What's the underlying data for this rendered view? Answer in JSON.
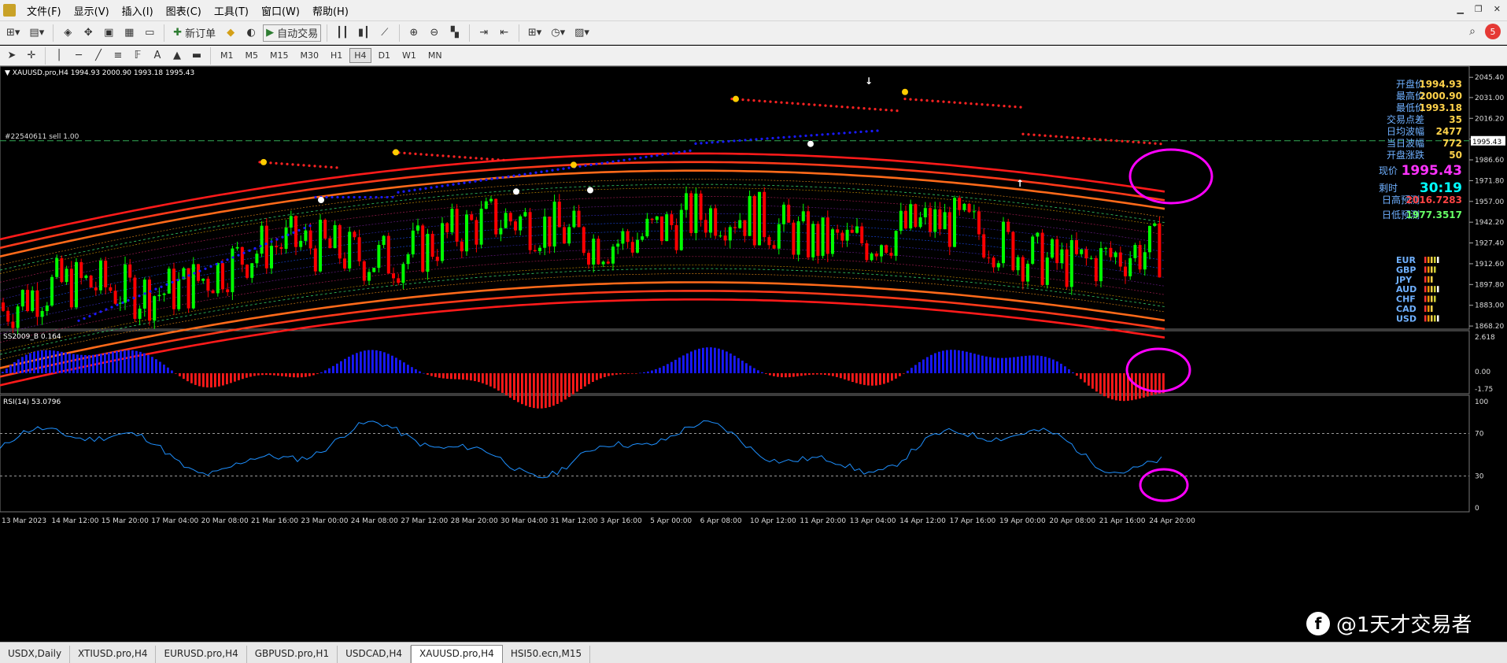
{
  "menubar": {
    "items": [
      "文件(F)",
      "显示(V)",
      "插入(I)",
      "图表(C)",
      "工具(T)",
      "窗口(W)",
      "帮助(H)"
    ]
  },
  "toolbar": {
    "new_order_label": "新订单",
    "auto_trade_label": "自动交易",
    "notification_count": "5"
  },
  "timeframes": [
    "M1",
    "M5",
    "M15",
    "M30",
    "H1",
    "H4",
    "D1",
    "W1",
    "MN"
  ],
  "active_timeframe": "H4",
  "main_chart": {
    "header": "XAUUSD.pro,H4  1994.93 2000.90 1993.18 1995.43",
    "order_line_label": "#22540611 sell 1.00",
    "current_price_tag": "1995.43",
    "price_axis": [
      "2045.40",
      "2031.00",
      "2016.20",
      "2001.40",
      "1986.60",
      "1971.80",
      "1957.00",
      "1942.20",
      "1927.40",
      "1912.60",
      "1897.80",
      "1883.00",
      "1868.20"
    ],
    "info_panel": [
      {
        "label": "开盘价",
        "value": "1994.93",
        "color": "#ffd24a"
      },
      {
        "label": "最高价",
        "value": "2000.90",
        "color": "#ffd24a"
      },
      {
        "label": "最低价",
        "value": "1993.18",
        "color": "#ffd24a"
      },
      {
        "label": "交易点差",
        "value": "35",
        "color": "#ffd24a"
      },
      {
        "label": "日均波幅",
        "value": "2477",
        "color": "#ffd24a"
      },
      {
        "label": "当日波幅",
        "value": "772",
        "color": "#ffd24a"
      },
      {
        "label": "开盘涨跌",
        "value": "50",
        "color": "#ffd24a"
      }
    ],
    "current_price": {
      "label": "现价",
      "value": "1995.43"
    },
    "remaining": {
      "label": "剩时",
      "value": "30:19"
    },
    "day_high_forecast": {
      "label": "日高预测",
      "value": "2016.7283"
    },
    "day_low_forecast": {
      "label": "日低预测",
      "value": "1977.3517"
    },
    "currencies": [
      "EUR",
      "GBP",
      "JPY",
      "AUD",
      "CHF",
      "CAD",
      "USD"
    ]
  },
  "indicator1": {
    "header": "SS2009_B 0.164",
    "axis": [
      "2.618",
      "0.00",
      "-1.75"
    ]
  },
  "indicator2": {
    "header": "RSI(14) 53.0796",
    "axis": [
      "100",
      "70",
      "30",
      "0"
    ]
  },
  "time_axis": [
    "13 Mar 2023",
    "14 Mar 12:00",
    "15 Mar 20:00",
    "17 Mar 04:00",
    "20 Mar 08:00",
    "21 Mar 16:00",
    "23 Mar 00:00",
    "24 Mar 08:00",
    "27 Mar 12:00",
    "28 Mar 20:00",
    "30 Mar 04:00",
    "31 Mar 12:00",
    "3 Apr 16:00",
    "5 Apr 00:00",
    "6 Apr 08:00",
    "10 Apr 12:00",
    "11 Apr 20:00",
    "13 Apr 04:00",
    "14 Apr 12:00",
    "17 Apr 16:00",
    "19 Apr 00:00",
    "20 Apr 08:00",
    "21 Apr 16:00",
    "24 Apr 20:00"
  ],
  "tabs": [
    "USDX,Daily",
    "XTIUSD.pro,H4",
    "EURUSD.pro,H4",
    "GBPUSD.pro,H1",
    "USDCAD,H4",
    "XAUUSD.pro,H4",
    "HSI50.ecn,M15"
  ],
  "active_tab": "XAUUSD.pro,H4",
  "watermark": {
    "logo_letter": "f",
    "text": "@1天才交易者"
  },
  "colors": {
    "bull": "#00ff00",
    "bear": "#ff0000",
    "band": "#ff1a1a",
    "histo_pos": "#1a1aff",
    "histo_neg": "#ff1a1a",
    "rsi": "#1e90ff",
    "highlight": "#ff00ff",
    "price_tag": "#ff33ff",
    "timer": "#00ffff"
  }
}
